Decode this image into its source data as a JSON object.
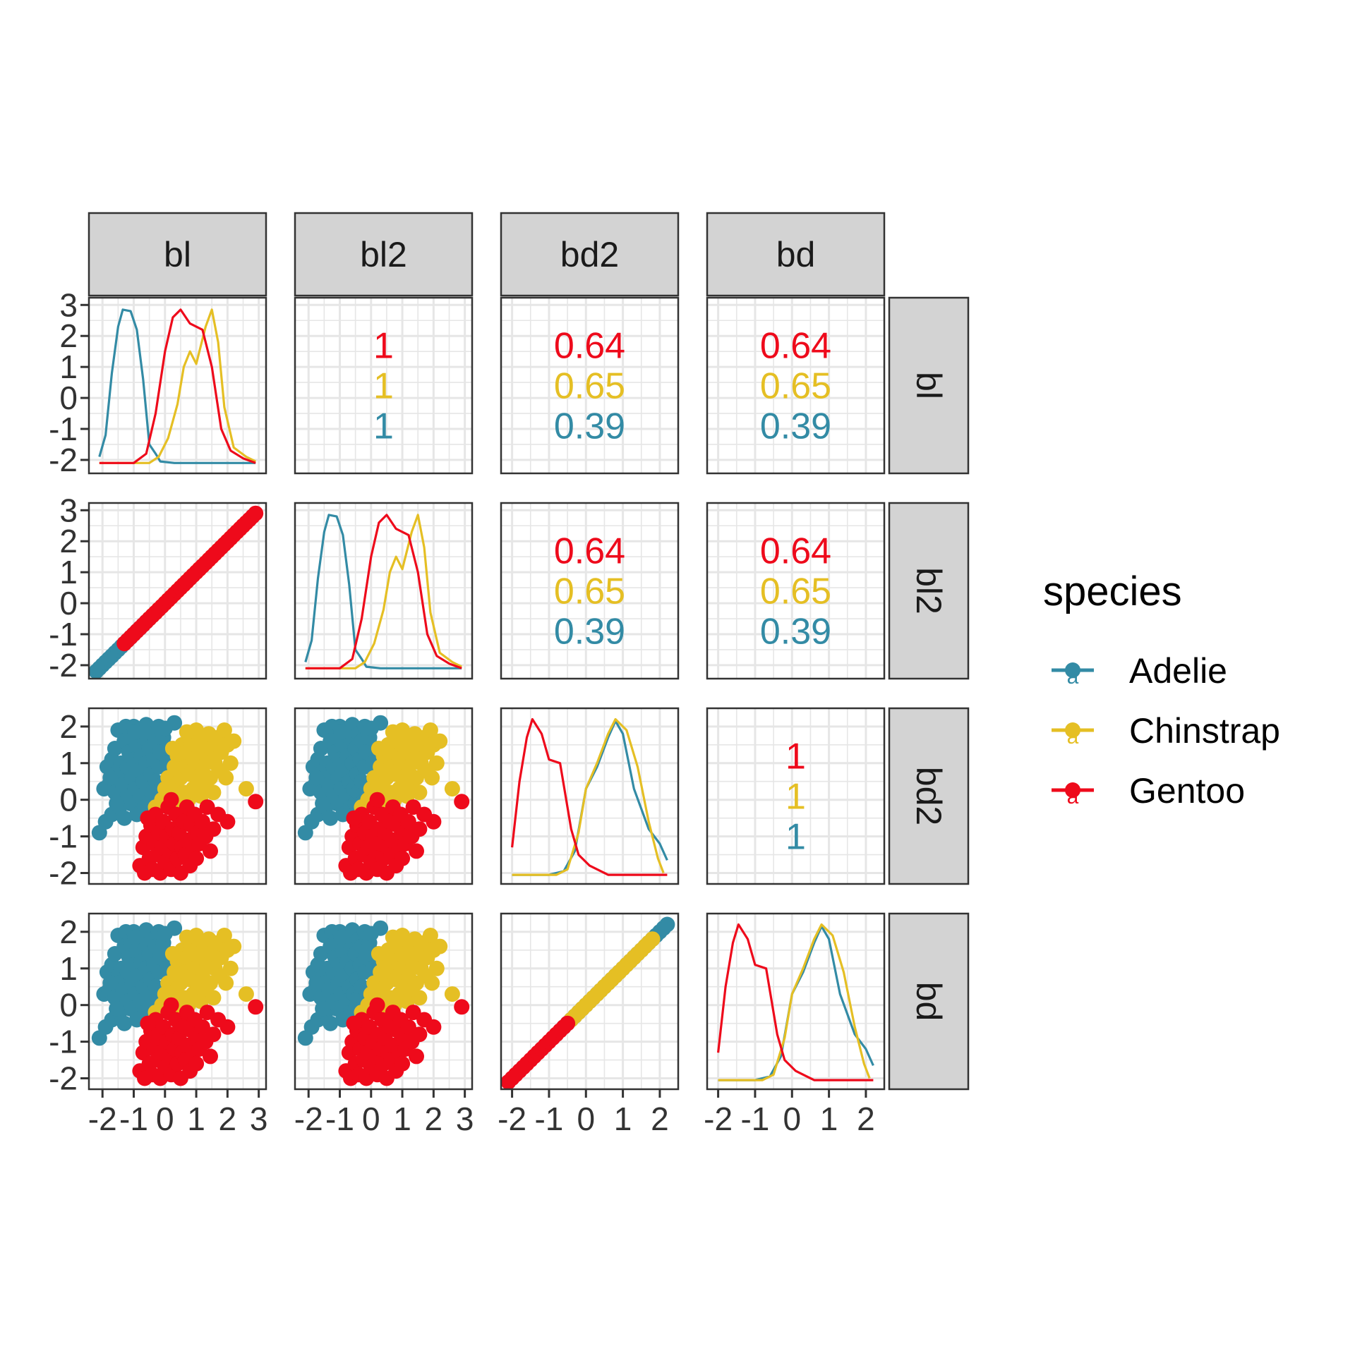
{
  "chart_data": {
    "type": "scatter",
    "variables": [
      "bl",
      "bl2",
      "bd2",
      "bd"
    ],
    "column_strips": [
      "bl",
      "bl2",
      "bd2",
      "bd"
    ],
    "row_strips": [
      "bl",
      "bl2",
      "bd2",
      "bd"
    ],
    "x_ticks": {
      "bl": [
        "-2",
        "-1",
        "0",
        "1",
        "2",
        "3"
      ],
      "bl2": [
        "-2",
        "-1",
        "0",
        "1",
        "2",
        "3"
      ],
      "bd2": [
        "-2",
        "-1",
        "0",
        "1",
        "2"
      ],
      "bd": [
        "-2",
        "-1",
        "0",
        "1",
        "2"
      ]
    },
    "y_ticks": {
      "bl": [
        "3",
        "2",
        "1",
        "0",
        "-1",
        "-2"
      ],
      "bl2": [
        "3",
        "2",
        "1",
        "0",
        "-1",
        "-2"
      ],
      "bd2": [
        "2",
        "1",
        "0",
        "-1",
        "-2"
      ],
      "bd": [
        "2",
        "1",
        "0",
        "-1",
        "-2"
      ]
    },
    "ranges": {
      "bl": [
        -2.2,
        3.0
      ],
      "bl2": [
        -2.2,
        3.0
      ],
      "bd2": [
        -2.1,
        2.3
      ],
      "bd": [
        -2.1,
        2.3
      ]
    },
    "grid": true,
    "legend": {
      "title": "species",
      "placement": "right",
      "key_glyph": "a",
      "entries": [
        "Adelie",
        "Chinstrap",
        "Gentoo"
      ]
    },
    "series": [
      {
        "name": "Adelie",
        "color": "#338BA5"
      },
      {
        "name": "Chinstrap",
        "color": "#E5BF24"
      },
      {
        "name": "Gentoo",
        "color": "#EE0A1B"
      }
    ],
    "correlations": [
      {
        "row": "bl",
        "col": "bl2",
        "values": [
          "1",
          "1",
          "1"
        ]
      },
      {
        "row": "bl",
        "col": "bd2",
        "values": [
          "0.64",
          "0.65",
          "0.39"
        ]
      },
      {
        "row": "bl",
        "col": "bd",
        "values": [
          "0.64",
          "0.65",
          "0.39"
        ]
      },
      {
        "row": "bl2",
        "col": "bd2",
        "values": [
          "0.64",
          "0.65",
          "0.39"
        ]
      },
      {
        "row": "bl2",
        "col": "bd",
        "values": [
          "0.64",
          "0.65",
          "0.39"
        ]
      },
      {
        "row": "bd2",
        "col": "bd",
        "values": [
          "1",
          "1",
          "1"
        ]
      }
    ],
    "correlation_order": [
      "Gentoo",
      "Chinstrap",
      "Adelie"
    ],
    "densities": {
      "bl": {
        "Adelie": [
          [
            -2.1,
            -1.9
          ],
          [
            -1.9,
            -1.2
          ],
          [
            -1.7,
            0.8
          ],
          [
            -1.5,
            2.3
          ],
          [
            -1.35,
            2.85
          ],
          [
            -1.1,
            2.8
          ],
          [
            -0.9,
            2.2
          ],
          [
            -0.7,
            0.6
          ],
          [
            -0.5,
            -1.5
          ],
          [
            -0.3,
            -1.8
          ],
          [
            -0.15,
            -2.05
          ],
          [
            0.3,
            -2.1
          ],
          [
            1.5,
            -2.1
          ],
          [
            2.9,
            -2.1
          ]
        ],
        "Chinstrap": [
          [
            -2.1,
            -2.1
          ],
          [
            -0.5,
            -2.1
          ],
          [
            -0.2,
            -1.9
          ],
          [
            0.1,
            -1.3
          ],
          [
            0.4,
            -0.2
          ],
          [
            0.6,
            1.0
          ],
          [
            0.8,
            1.5
          ],
          [
            1.0,
            1.1
          ],
          [
            1.3,
            2.3
          ],
          [
            1.5,
            2.85
          ],
          [
            1.7,
            1.8
          ],
          [
            1.9,
            -0.3
          ],
          [
            2.2,
            -1.6
          ],
          [
            2.6,
            -1.9
          ],
          [
            2.9,
            -2.05
          ]
        ],
        "Gentoo": [
          [
            -2.1,
            -2.1
          ],
          [
            -1.0,
            -2.1
          ],
          [
            -0.6,
            -1.8
          ],
          [
            -0.3,
            -0.5
          ],
          [
            0.0,
            1.5
          ],
          [
            0.25,
            2.6
          ],
          [
            0.5,
            2.85
          ],
          [
            0.8,
            2.4
          ],
          [
            1.2,
            2.2
          ],
          [
            1.5,
            1.0
          ],
          [
            1.8,
            -1.0
          ],
          [
            2.1,
            -1.7
          ],
          [
            2.5,
            -1.95
          ],
          [
            2.9,
            -2.1
          ]
        ]
      },
      "bd2": {
        "Adelie": [
          [
            -2.0,
            -2.05
          ],
          [
            -1.0,
            -2.05
          ],
          [
            -0.6,
            -1.95
          ],
          [
            -0.3,
            -1.4
          ],
          [
            0.0,
            0.3
          ],
          [
            0.3,
            0.9
          ],
          [
            0.6,
            1.7
          ],
          [
            0.8,
            2.15
          ],
          [
            1.0,
            1.8
          ],
          [
            1.3,
            0.3
          ],
          [
            1.7,
            -0.8
          ],
          [
            2.0,
            -1.2
          ],
          [
            2.2,
            -1.65
          ]
        ],
        "Chinstrap": [
          [
            -2.0,
            -2.05
          ],
          [
            -0.8,
            -2.05
          ],
          [
            -0.5,
            -1.9
          ],
          [
            -0.2,
            -0.9
          ],
          [
            0.0,
            0.3
          ],
          [
            0.3,
            1.0
          ],
          [
            0.6,
            1.8
          ],
          [
            0.8,
            2.2
          ],
          [
            1.1,
            1.9
          ],
          [
            1.4,
            0.9
          ],
          [
            1.7,
            -0.6
          ],
          [
            1.95,
            -1.6
          ],
          [
            2.1,
            -2.0
          ]
        ],
        "Gentoo": [
          [
            -2.0,
            -1.3
          ],
          [
            -1.8,
            0.5
          ],
          [
            -1.6,
            1.7
          ],
          [
            -1.45,
            2.2
          ],
          [
            -1.2,
            1.8
          ],
          [
            -1.0,
            1.1
          ],
          [
            -0.7,
            1.0
          ],
          [
            -0.4,
            -0.8
          ],
          [
            -0.2,
            -1.5
          ],
          [
            0.1,
            -1.8
          ],
          [
            0.6,
            -2.05
          ],
          [
            2.2,
            -2.05
          ]
        ]
      },
      "bd": {
        "Adelie": [
          [
            -2.0,
            -2.05
          ],
          [
            -1.0,
            -2.05
          ],
          [
            -0.6,
            -1.95
          ],
          [
            -0.3,
            -1.4
          ],
          [
            0.0,
            0.3
          ],
          [
            0.3,
            0.9
          ],
          [
            0.6,
            1.7
          ],
          [
            0.8,
            2.15
          ],
          [
            1.0,
            1.8
          ],
          [
            1.3,
            0.3
          ],
          [
            1.7,
            -0.8
          ],
          [
            2.0,
            -1.2
          ],
          [
            2.2,
            -1.65
          ]
        ],
        "Chinstrap": [
          [
            -2.0,
            -2.05
          ],
          [
            -0.8,
            -2.05
          ],
          [
            -0.5,
            -1.9
          ],
          [
            -0.2,
            -0.9
          ],
          [
            0.0,
            0.3
          ],
          [
            0.3,
            1.0
          ],
          [
            0.6,
            1.8
          ],
          [
            0.8,
            2.2
          ],
          [
            1.1,
            1.9
          ],
          [
            1.4,
            0.9
          ],
          [
            1.7,
            -0.6
          ],
          [
            1.95,
            -1.6
          ],
          [
            2.1,
            -2.0
          ]
        ],
        "Gentoo": [
          [
            -2.0,
            -1.3
          ],
          [
            -1.8,
            0.5
          ],
          [
            -1.6,
            1.7
          ],
          [
            -1.45,
            2.2
          ],
          [
            -1.2,
            1.8
          ],
          [
            -1.0,
            1.1
          ],
          [
            -0.7,
            1.0
          ],
          [
            -0.4,
            -0.8
          ],
          [
            -0.2,
            -1.5
          ],
          [
            0.1,
            -1.8
          ],
          [
            0.6,
            -2.05
          ],
          [
            2.2,
            -2.05
          ]
        ]
      }
    },
    "points": {
      "Adelie": [
        [
          -2.1,
          -0.9
        ],
        [
          -1.9,
          -0.6
        ],
        [
          -1.95,
          0.3
        ],
        [
          -1.85,
          0.9
        ],
        [
          -1.8,
          0.4
        ],
        [
          -1.7,
          1.1
        ],
        [
          -1.7,
          -0.4
        ],
        [
          -1.6,
          0.2
        ],
        [
          -1.6,
          1.4
        ],
        [
          -1.5,
          1.9
        ],
        [
          -1.5,
          0.7
        ],
        [
          -1.45,
          -0.2
        ],
        [
          -1.4,
          1.0
        ],
        [
          -1.35,
          0.4
        ],
        [
          -1.3,
          1.6
        ],
        [
          -1.3,
          -0.5
        ],
        [
          -1.25,
          2.0
        ],
        [
          -1.2,
          0.9
        ],
        [
          -1.2,
          0.1
        ],
        [
          -1.15,
          1.3
        ],
        [
          -1.1,
          1.7
        ],
        [
          -1.1,
          -0.1
        ],
        [
          -1.05,
          0.6
        ],
        [
          -1.0,
          2.0
        ],
        [
          -1.0,
          1.1
        ],
        [
          -0.95,
          0.3
        ],
        [
          -0.9,
          1.5
        ],
        [
          -0.9,
          -0.4
        ],
        [
          -0.85,
          0.8
        ],
        [
          -0.8,
          1.9
        ],
        [
          -0.8,
          0.1
        ],
        [
          -0.75,
          1.2
        ],
        [
          -0.7,
          0.5
        ],
        [
          -0.7,
          1.7
        ],
        [
          -0.65,
          -0.2
        ],
        [
          -0.6,
          2.05
        ],
        [
          -0.6,
          1.0
        ],
        [
          -0.55,
          0.3
        ],
        [
          -0.5,
          1.4
        ],
        [
          -0.5,
          -0.1
        ],
        [
          -0.45,
          0.7
        ],
        [
          -0.4,
          1.8
        ],
        [
          -0.4,
          0.2
        ],
        [
          -0.35,
          1.1
        ],
        [
          -0.3,
          0.5
        ],
        [
          -0.3,
          1.6
        ],
        [
          -0.25,
          -0.05
        ],
        [
          -0.2,
          2.0
        ],
        [
          -0.2,
          0.9
        ],
        [
          -0.15,
          1.3
        ],
        [
          -0.1,
          0.4
        ],
        [
          -0.05,
          1.7
        ],
        [
          0.0,
          0.2
        ],
        [
          0.05,
          1.0
        ],
        [
          0.15,
          1.4
        ],
        [
          0.3,
          2.1
        ],
        [
          0.0,
          1.95
        ],
        [
          -1.55,
          -0.1
        ],
        [
          -1.75,
          0.6
        ],
        [
          -0.95,
          1.85
        ]
      ],
      "Chinstrap": [
        [
          -0.3,
          -0.2
        ],
        [
          -0.1,
          0.0
        ],
        [
          0.0,
          0.3
        ],
        [
          0.1,
          -0.1
        ],
        [
          0.1,
          0.6
        ],
        [
          0.2,
          0.1
        ],
        [
          0.3,
          0.9
        ],
        [
          0.35,
          0.4
        ],
        [
          0.4,
          1.2
        ],
        [
          0.45,
          -0.1
        ],
        [
          0.5,
          0.6
        ],
        [
          0.55,
          1.5
        ],
        [
          0.6,
          0.2
        ],
        [
          0.65,
          0.9
        ],
        [
          0.7,
          1.3
        ],
        [
          0.75,
          0.0
        ],
        [
          0.8,
          0.7
        ],
        [
          0.85,
          1.6
        ],
        [
          0.9,
          0.3
        ],
        [
          0.95,
          1.0
        ],
        [
          1.0,
          1.9
        ],
        [
          1.05,
          0.5
        ],
        [
          1.1,
          1.3
        ],
        [
          1.15,
          0.1
        ],
        [
          1.2,
          0.8
        ],
        [
          1.25,
          1.6
        ],
        [
          1.3,
          0.4
        ],
        [
          1.35,
          1.1
        ],
        [
          1.4,
          1.8
        ],
        [
          1.45,
          0.6
        ],
        [
          1.5,
          1.4
        ],
        [
          1.55,
          0.2
        ],
        [
          1.6,
          1.0
        ],
        [
          1.7,
          1.7
        ],
        [
          1.75,
          0.8
        ],
        [
          1.8,
          1.3
        ],
        [
          1.9,
          1.9
        ],
        [
          2.0,
          1.5
        ],
        [
          2.1,
          1.0
        ],
        [
          2.2,
          1.6
        ],
        [
          2.6,
          0.3
        ],
        [
          0.25,
          1.4
        ],
        [
          0.7,
          1.85
        ],
        [
          1.95,
          0.6
        ]
      ],
      "Gentoo": [
        [
          -0.8,
          -1.8
        ],
        [
          -0.7,
          -1.3
        ],
        [
          -0.65,
          -2.0
        ],
        [
          -0.6,
          -1.0
        ],
        [
          -0.5,
          -1.6
        ],
        [
          -0.45,
          -0.7
        ],
        [
          -0.4,
          -1.9
        ],
        [
          -0.35,
          -1.2
        ],
        [
          -0.3,
          -0.4
        ],
        [
          -0.25,
          -1.5
        ],
        [
          -0.2,
          -0.9
        ],
        [
          -0.15,
          -2.0
        ],
        [
          -0.1,
          -1.3
        ],
        [
          -0.05,
          -0.6
        ],
        [
          0.0,
          -1.7
        ],
        [
          0.05,
          -1.0
        ],
        [
          0.1,
          -0.2
        ],
        [
          0.15,
          -1.4
        ],
        [
          0.2,
          -1.9
        ],
        [
          0.25,
          -0.8
        ],
        [
          0.3,
          -1.2
        ],
        [
          0.35,
          -0.4
        ],
        [
          0.4,
          -1.6
        ],
        [
          0.45,
          -0.9
        ],
        [
          0.5,
          -2.0
        ],
        [
          0.55,
          -1.3
        ],
        [
          0.6,
          -0.6
        ],
        [
          0.65,
          -1.5
        ],
        [
          0.7,
          -0.2
        ],
        [
          0.75,
          -1.1
        ],
        [
          0.8,
          -1.8
        ],
        [
          0.85,
          -0.7
        ],
        [
          0.9,
          -1.3
        ],
        [
          0.95,
          -0.4
        ],
        [
          1.0,
          -1.6
        ],
        [
          1.05,
          -0.9
        ],
        [
          1.1,
          -1.2
        ],
        [
          1.2,
          -0.6
        ],
        [
          1.3,
          -1.0
        ],
        [
          1.45,
          -1.4
        ],
        [
          1.55,
          -0.8
        ],
        [
          1.7,
          -0.4
        ],
        [
          2.0,
          -0.6
        ],
        [
          2.9,
          -0.05
        ],
        [
          -0.55,
          -0.5
        ],
        [
          0.2,
          0.0
        ],
        [
          1.35,
          -0.2
        ]
      ]
    }
  }
}
